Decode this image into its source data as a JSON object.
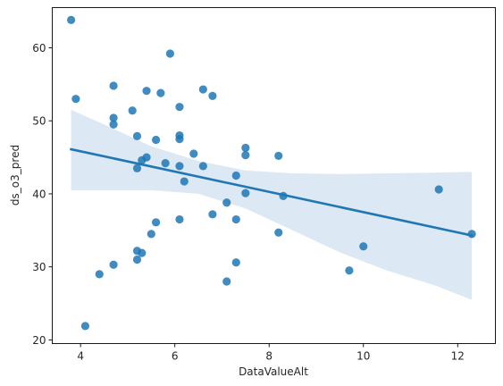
{
  "chart_data": {
    "type": "scatter",
    "xlabel": "DataValueAlt",
    "ylabel": "ds_o3_pred",
    "xlim": [
      3.4,
      12.8
    ],
    "ylim": [
      19.5,
      65.5
    ],
    "xticks": [
      4,
      6,
      8,
      10,
      12
    ],
    "yticks": [
      20,
      30,
      40,
      50,
      60
    ],
    "grid": false,
    "colors": {
      "points": "#1f77b4",
      "line": "#1f77b4",
      "band": "#dce8f3"
    },
    "points": [
      {
        "x": 3.8,
        "y": 63.8
      },
      {
        "x": 3.9,
        "y": 53.0
      },
      {
        "x": 4.1,
        "y": 21.9
      },
      {
        "x": 4.4,
        "y": 29.0
      },
      {
        "x": 4.7,
        "y": 54.8
      },
      {
        "x": 4.7,
        "y": 50.4
      },
      {
        "x": 4.7,
        "y": 49.5
      },
      {
        "x": 4.7,
        "y": 30.3
      },
      {
        "x": 5.1,
        "y": 51.4
      },
      {
        "x": 5.2,
        "y": 47.9
      },
      {
        "x": 5.2,
        "y": 43.5
      },
      {
        "x": 5.2,
        "y": 32.2
      },
      {
        "x": 5.2,
        "y": 31.0
      },
      {
        "x": 5.3,
        "y": 44.6
      },
      {
        "x": 5.3,
        "y": 31.9
      },
      {
        "x": 5.4,
        "y": 54.1
      },
      {
        "x": 5.4,
        "y": 45.0
      },
      {
        "x": 5.5,
        "y": 34.5
      },
      {
        "x": 5.6,
        "y": 47.4
      },
      {
        "x": 5.6,
        "y": 36.1
      },
      {
        "x": 5.7,
        "y": 53.8
      },
      {
        "x": 5.8,
        "y": 44.2
      },
      {
        "x": 5.9,
        "y": 59.2
      },
      {
        "x": 6.1,
        "y": 51.9
      },
      {
        "x": 6.1,
        "y": 48.0
      },
      {
        "x": 6.1,
        "y": 47.5
      },
      {
        "x": 6.1,
        "y": 43.8
      },
      {
        "x": 6.1,
        "y": 36.5
      },
      {
        "x": 6.2,
        "y": 41.7
      },
      {
        "x": 6.4,
        "y": 45.5
      },
      {
        "x": 6.6,
        "y": 54.3
      },
      {
        "x": 6.6,
        "y": 43.8
      },
      {
        "x": 6.8,
        "y": 53.4
      },
      {
        "x": 6.8,
        "y": 37.2
      },
      {
        "x": 7.1,
        "y": 38.8
      },
      {
        "x": 7.1,
        "y": 28.0
      },
      {
        "x": 7.3,
        "y": 42.5
      },
      {
        "x": 7.3,
        "y": 36.5
      },
      {
        "x": 7.3,
        "y": 30.6
      },
      {
        "x": 7.5,
        "y": 46.3
      },
      {
        "x": 7.5,
        "y": 45.3
      },
      {
        "x": 7.5,
        "y": 40.1
      },
      {
        "x": 8.2,
        "y": 45.2
      },
      {
        "x": 8.2,
        "y": 34.7
      },
      {
        "x": 8.3,
        "y": 39.7
      },
      {
        "x": 9.7,
        "y": 29.5
      },
      {
        "x": 10.0,
        "y": 32.8
      },
      {
        "x": 11.6,
        "y": 40.6
      },
      {
        "x": 12.3,
        "y": 34.5
      }
    ],
    "regression_line": {
      "x": [
        3.8,
        12.3
      ],
      "y": [
        46.1,
        34.3
      ]
    },
    "confidence_band": {
      "x": [
        3.8,
        4.5,
        5.5,
        6.5,
        7.5,
        8.5,
        9.5,
        10.5,
        11.5,
        12.3
      ],
      "upper": [
        51.5,
        49.5,
        46.5,
        44.5,
        43.2,
        42.8,
        42.7,
        42.8,
        42.9,
        43.0
      ],
      "lower": [
        40.5,
        40.5,
        40.5,
        40.0,
        38.0,
        35.0,
        32.0,
        29.5,
        27.5,
        25.5
      ]
    }
  }
}
